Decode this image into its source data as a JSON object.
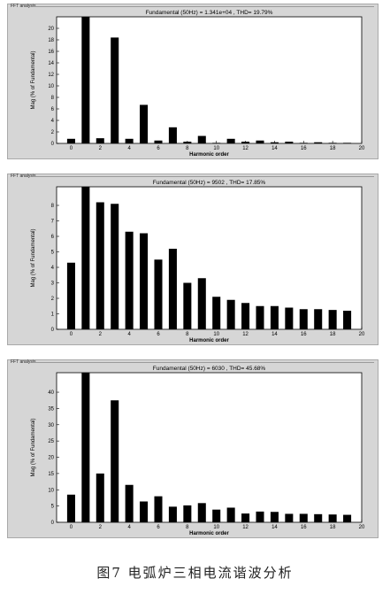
{
  "caption": "图7   电弧炉三相电流谐波分析",
  "chart_data": [
    {
      "type": "bar",
      "panel_label": "FFT analysis",
      "title": "Fundamental (50Hz) = 1.341e+04 , THD= 19.79%",
      "xlabel": "Harmonic order",
      "ylabel": "Mag (% of Fundamental)",
      "xlim": [
        -1,
        20
      ],
      "ylim": [
        0,
        22
      ],
      "xticks": [
        0,
        2,
        4,
        6,
        8,
        10,
        12,
        14,
        16,
        18,
        20
      ],
      "yticks": [
        0,
        2,
        4,
        6,
        8,
        10,
        12,
        14,
        16,
        18,
        20
      ],
      "x": [
        0,
        1,
        2,
        3,
        4,
        5,
        6,
        7,
        8,
        9,
        10,
        11,
        12,
        13,
        14,
        15,
        16,
        17,
        18,
        19
      ],
      "values": [
        0.8,
        22,
        0.9,
        18.4,
        0.8,
        6.7,
        0.5,
        2.8,
        0.3,
        1.3,
        0.1,
        0.8,
        0.3,
        0.5,
        0.2,
        0.3,
        0.1,
        0.2,
        0.1,
        0.1
      ]
    },
    {
      "type": "bar",
      "panel_label": "FFT analysis",
      "title": "Fundamental (50Hz) = 9502 , THD= 17.85%",
      "xlabel": "Harmonic order",
      "ylabel": "Mag (% of Fundamental)",
      "xlim": [
        -1,
        20
      ],
      "ylim": [
        0,
        9.2
      ],
      "xticks": [
        0,
        2,
        4,
        6,
        8,
        10,
        12,
        14,
        16,
        18,
        20
      ],
      "yticks": [
        0,
        1,
        2,
        3,
        4,
        5,
        6,
        7,
        8
      ],
      "x": [
        0,
        1,
        2,
        3,
        4,
        5,
        6,
        7,
        8,
        9,
        10,
        11,
        12,
        13,
        14,
        15,
        16,
        17,
        18,
        19
      ],
      "values": [
        4.3,
        9.2,
        8.2,
        8.1,
        6.3,
        6.2,
        4.5,
        5.2,
        3.0,
        3.3,
        2.1,
        1.9,
        1.7,
        1.5,
        1.5,
        1.4,
        1.3,
        1.3,
        1.25,
        1.2
      ]
    },
    {
      "type": "bar",
      "panel_label": "FFT analysis",
      "title": "Fundamental (50Hz) = 6030 , THD= 45.68%",
      "xlabel": "Harmonic order",
      "ylabel": "Mag (% of Fundamental)",
      "xlim": [
        -1,
        20
      ],
      "ylim": [
        0,
        46
      ],
      "xticks": [
        0,
        2,
        4,
        6,
        8,
        10,
        12,
        14,
        16,
        18,
        20
      ],
      "yticks": [
        0,
        5,
        10,
        15,
        20,
        25,
        30,
        35,
        40
      ],
      "x": [
        0,
        1,
        2,
        3,
        4,
        5,
        6,
        7,
        8,
        9,
        10,
        11,
        12,
        13,
        14,
        15,
        16,
        17,
        18,
        19
      ],
      "values": [
        8.5,
        46,
        15,
        37.5,
        11.5,
        6.4,
        8.0,
        4.8,
        5.2,
        5.9,
        3.9,
        4.5,
        2.7,
        3.3,
        3.2,
        2.6,
        2.6,
        2.5,
        2.4,
        2.3
      ]
    }
  ]
}
